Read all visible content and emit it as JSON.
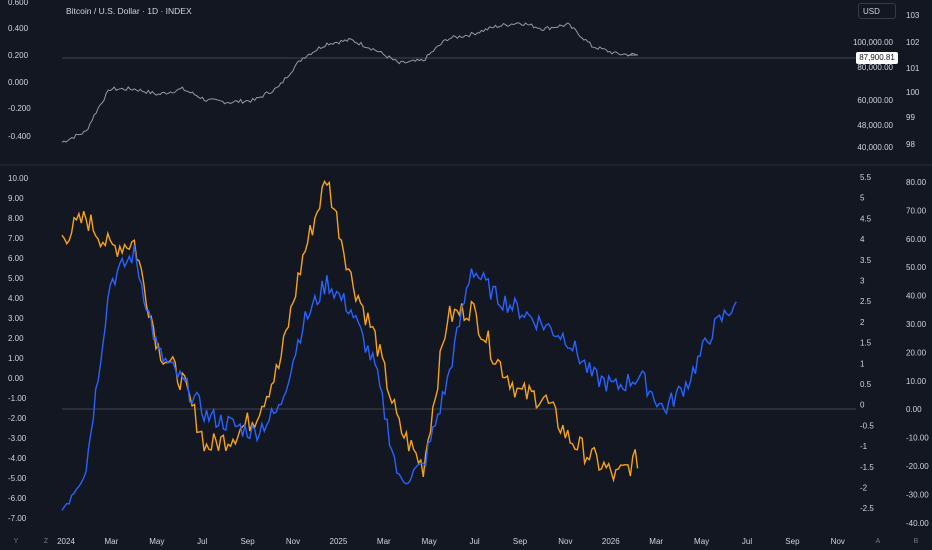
{
  "header": {
    "symbol_title": "Bitcoin / U.S. Dollar · 1D · INDEX",
    "currency": "USD",
    "last_price": "87,900.81"
  },
  "bottom_corner": {
    "left_buttons": [
      "Y",
      "Z"
    ],
    "right_buttons": [
      "A",
      "B"
    ]
  },
  "colors": {
    "background": "#131722",
    "price_line": "#9598a1",
    "series_blue": "#2962ff",
    "series_orange": "#f7a21b",
    "grid_separator": "#2a2e39",
    "zero_line": "#434651"
  },
  "chart_data": [
    {
      "type": "line",
      "panel": "price",
      "title": "Bitcoin / U.S. Dollar · 1D · INDEX",
      "y_scale": "log",
      "x": [
        "2024-01",
        "2024-02",
        "2024-03",
        "2024-04",
        "2024-05",
        "2024-06",
        "2024-07",
        "2024-08",
        "2024-09",
        "2024-10",
        "2024-11",
        "2024-12",
        "2025-01",
        "2025-02",
        "2025-03",
        "2025-04",
        "2025-05",
        "2025-06",
        "2025-07",
        "2025-08",
        "2025-09",
        "2025-10",
        "2025-11",
        "2025-12",
        "2026-01"
      ],
      "series": [
        {
          "values": [
            42000,
            46000,
            66000,
            66000,
            63000,
            66000,
            60000,
            59000,
            60000,
            67000,
            86000,
            97000,
            100000,
            92000,
            82000,
            84000,
            101000,
            105000,
            112000,
            116000,
            110000,
            114000,
            95000,
            89000,
            87900.81
          ]
        }
      ],
      "left_axis_ticks": [
        "0.600",
        "0.400",
        "0.200",
        "0.000",
        "-0.200",
        "-0.400"
      ],
      "right_axis_ticks": [
        "100,000.00",
        "80,000.00",
        "60,000.00",
        "48,000.00",
        "40,000.00"
      ],
      "far_right_axis_ticks": [
        "103",
        "102",
        "101",
        "100",
        "99",
        "98"
      ],
      "last_price_label": "87,900.81"
    },
    {
      "type": "line",
      "panel": "indicator",
      "x_ticks": [
        "2024",
        "Mar",
        "May",
        "Jul",
        "Sep",
        "Nov",
        "2025",
        "Mar",
        "May",
        "Jul",
        "Sep",
        "Nov",
        "2026",
        "Mar",
        "May",
        "Jul",
        "Sep",
        "Nov"
      ],
      "x": [
        "2024-01",
        "2024-02",
        "2024-03",
        "2024-04",
        "2024-05",
        "2024-06",
        "2024-07",
        "2024-08",
        "2024-09",
        "2024-10",
        "2024-11",
        "2024-12",
        "2025-01",
        "2025-02",
        "2025-03",
        "2025-04",
        "2025-05",
        "2025-06",
        "2025-07",
        "2025-08",
        "2025-09",
        "2025-10",
        "2025-11",
        "2025-12",
        "2026-01",
        "2026-02",
        "2026-03",
        "2026-04",
        "2026-05"
      ],
      "left_axis_ticks": [
        "10.00",
        "9.00",
        "8.00",
        "7.00",
        "6.00",
        "5.00",
        "4.00",
        "3.00",
        "2.00",
        "1.00",
        "0.00",
        "-1.00",
        "-2.00",
        "-3.00",
        "-4.00",
        "-5.00",
        "-6.00",
        "-7.00"
      ],
      "mid_axis_ticks": [
        "5.5",
        "5",
        "4.5",
        "4",
        "3.5",
        "3",
        "2.5",
        "2",
        "1.5",
        "1",
        "0.5",
        "0",
        "-0.5",
        "-1",
        "-1.5",
        "-2",
        "-2.5"
      ],
      "right_axis_ticks": [
        "80.00",
        "70.00",
        "60.00",
        "50.00",
        "40.00",
        "30.00",
        "20.00",
        "10.00",
        "0.00",
        "-10.00",
        "-20.00",
        "-30.00",
        "-40.00"
      ],
      "series": [
        {
          "color": "orange",
          "axis": "left",
          "values": [
            7.0,
            8.0,
            6.5,
            6.8,
            1.5,
            -0.2,
            -3.5,
            -3.0,
            -2.0,
            0.5,
            6.0,
            10.0,
            5.0,
            2.0,
            -2.5,
            -4.5,
            3.0,
            3.5,
            1.0,
            -0.8,
            -1.0,
            -3.0,
            -4.0,
            -5.0,
            -4.0,
            null,
            null,
            null,
            null
          ]
        },
        {
          "color": "blue",
          "axis": "right",
          "values": [
            -35,
            -20,
            45,
            55,
            20,
            10,
            -2,
            -5,
            -8,
            0,
            30,
            45,
            35,
            15,
            -25,
            -20,
            10,
            50,
            40,
            35,
            30,
            25,
            12,
            8,
            12,
            0,
            10,
            28,
            38
          ]
        }
      ]
    }
  ]
}
